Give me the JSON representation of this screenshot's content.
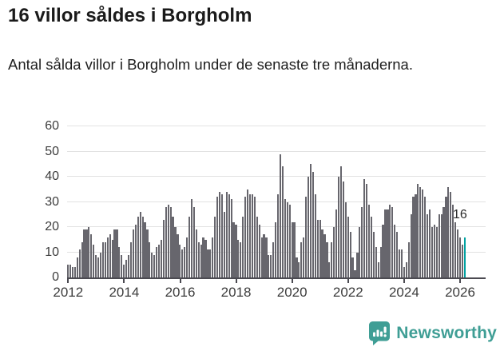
{
  "header": {
    "title": "16 villor såldes i Borgholm",
    "subtitle": "Antal sålda villor i Borgholm under de senaste tre månaderna."
  },
  "chart_data": {
    "type": "bar",
    "title": "16 villor såldes i Borgholm",
    "xlabel": "",
    "ylabel": "",
    "ylim": [
      0,
      60
    ],
    "grid": true,
    "y_ticks": [
      0,
      10,
      20,
      30,
      40,
      50,
      60
    ],
    "x_tick_labels": [
      "2012",
      "2014",
      "2016",
      "2018",
      "2020",
      "2022",
      "2024",
      "2026"
    ],
    "x_start": "2012-01",
    "x_end": "2026-03",
    "x_interval": "monthly",
    "bar_color": "#67666d",
    "series": [
      {
        "name": "Antal sålda villor (rullande tre månader)",
        "values": [
          5,
          5,
          4,
          4,
          8,
          11,
          14,
          19,
          19,
          20,
          17,
          13,
          9,
          8,
          10,
          14,
          14,
          16,
          17,
          15,
          19,
          19,
          12,
          9,
          5,
          7,
          9,
          14,
          19,
          21,
          24,
          26,
          24,
          22,
          19,
          14,
          10,
          9,
          12,
          13,
          15,
          23,
          28,
          29,
          28,
          24,
          20,
          17,
          13,
          11,
          12,
          16,
          24,
          31,
          28,
          19,
          14,
          13,
          16,
          15,
          11,
          11,
          16,
          24,
          32,
          34,
          33,
          26,
          34,
          33,
          31,
          22,
          21,
          15,
          14,
          24,
          32,
          35,
          33,
          33,
          32,
          24,
          21,
          16,
          17,
          16,
          9,
          9,
          14,
          22,
          33,
          49,
          44,
          31,
          30,
          29,
          22,
          22,
          8,
          6,
          14,
          16,
          32,
          40,
          45,
          42,
          33,
          23,
          23,
          19,
          17,
          14,
          6,
          14,
          20,
          27,
          40,
          44,
          38,
          30,
          24,
          18,
          8,
          3,
          10,
          20,
          28,
          39,
          37,
          29,
          24,
          18,
          12,
          6,
          12,
          21,
          27,
          27,
          29,
          28,
          21,
          18,
          11,
          11,
          4,
          6,
          14,
          25,
          32,
          33,
          37,
          36,
          35,
          32,
          25,
          27,
          20,
          21,
          20,
          25,
          25,
          28,
          32,
          36,
          34,
          29,
          22,
          19,
          16,
          13,
          16
        ]
      }
    ],
    "highlight": {
      "index": 170,
      "value": 16,
      "label": "16",
      "color": "#00a1a1"
    }
  },
  "footer": {
    "brand": "Newsworthy",
    "brand_color": "#3f9e95"
  }
}
